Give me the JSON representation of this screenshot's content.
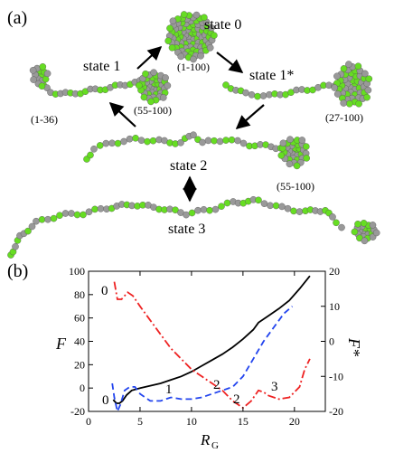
{
  "panel_a": {
    "label": "(a)",
    "states": {
      "s0": "state 0",
      "s1": "state 1",
      "s1star": "state 1*",
      "s2": "state 2",
      "s3": "state 3"
    },
    "ranges": {
      "r0": "(1-100)",
      "r1a": "(1-36)",
      "r1b": "(55-100)",
      "r1star": "(27-100)",
      "r2": "(55-100)"
    },
    "colors": {
      "bead_green": "#66dd22",
      "bead_gray": "#999999"
    }
  },
  "panel_b": {
    "label": "(b)"
  },
  "chart_data": {
    "type": "line",
    "xlabel": "R",
    "xlabel_sub": "G",
    "ylabel_left": "F",
    "ylabel_right": "F*",
    "xlim": [
      0,
      23
    ],
    "ylim_left": [
      -20,
      100
    ],
    "ylim_right": [
      -20,
      20
    ],
    "x_ticks": [
      "0",
      "5",
      "10",
      "15",
      "20"
    ],
    "y_ticks_left": [
      "-20",
      "0",
      "20",
      "40",
      "60",
      "80",
      "100"
    ],
    "y_ticks_right": [
      "-20",
      "-10",
      "0",
      "10",
      "20"
    ],
    "grid": false,
    "series": [
      {
        "color": "#000000",
        "dash": "solid",
        "axis": "left",
        "x": [
          2.4,
          2.7,
          3.0,
          3.3,
          3.7,
          4.2,
          5.0,
          6.0,
          7.0,
          8.0,
          9.0,
          10.0,
          11.0,
          12.0,
          13.0,
          14.0,
          15.0,
          16.0,
          16.5,
          17.5,
          18.5,
          19.5,
          20.5,
          21.5
        ],
        "y": [
          -10,
          -13,
          -13,
          -11,
          -6,
          -2,
          0,
          2,
          4,
          7,
          10,
          14,
          19,
          24,
          29,
          35,
          42,
          50,
          56,
          62,
          68,
          75,
          85,
          96
        ]
      },
      {
        "color": "#2244ee",
        "dash": "dashed",
        "axis": "right",
        "x": [
          2.3,
          2.5,
          2.8,
          3.1,
          3.5,
          4.0,
          4.5,
          5.0,
          6.0,
          7.0,
          8.0,
          9.0,
          10.0,
          11.0,
          12.0,
          13.0,
          14.0,
          15.0,
          16.0,
          17.0,
          18.0,
          19.0,
          19.8
        ],
        "y": [
          -12,
          -16,
          -20,
          -18,
          -14,
          -13,
          -13,
          -15,
          -17,
          -17,
          -16,
          -16.5,
          -16.5,
          -16,
          -15,
          -14,
          -13,
          -10,
          -5,
          0,
          4,
          8,
          10
        ]
      },
      {
        "color": "#ee2222",
        "dash": "dashdot",
        "axis": "right",
        "x": [
          2.5,
          2.8,
          3.2,
          3.8,
          4.3,
          5.0,
          6.0,
          7.0,
          8.0,
          9.0,
          10.0,
          11.0,
          12.0,
          13.0,
          14.0,
          15.0,
          15.8,
          16.5,
          17.0,
          17.5,
          18.5,
          19.5,
          20.5,
          21.0,
          21.5
        ],
        "y": [
          17,
          12,
          12,
          14,
          13,
          10,
          6,
          2,
          -2,
          -5,
          -8,
          -10,
          -12,
          -14,
          -17,
          -19,
          -17,
          -14,
          -14.5,
          -15.5,
          -16.5,
          -16,
          -13,
          -8,
          -5
        ]
      }
    ],
    "annotations": [
      {
        "text": "0",
        "series": "red"
      },
      {
        "text": "0",
        "series": "black"
      },
      {
        "text": "1",
        "series": "blue"
      },
      {
        "text": "2",
        "series": "blue"
      },
      {
        "text": "2",
        "series": "red"
      },
      {
        "text": "3",
        "series": "red"
      }
    ]
  }
}
